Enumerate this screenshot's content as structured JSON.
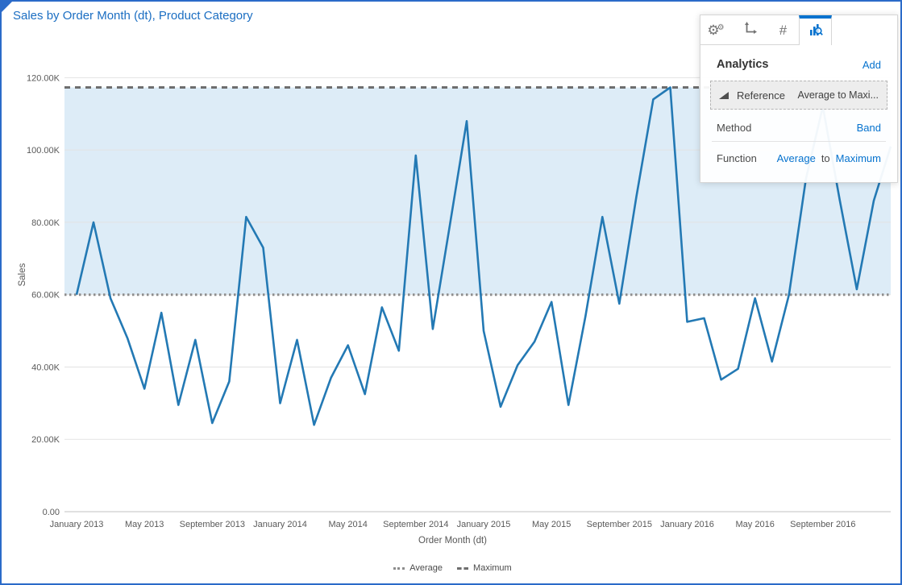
{
  "window": {
    "title": "Sales by Order Month (dt), Product Category"
  },
  "chart_data": {
    "type": "line",
    "title": "Sales by Order Month (dt), Product Category",
    "xlabel": "Order Month (dt)",
    "ylabel": "Sales",
    "ylim": [
      0,
      120000
    ],
    "grid": true,
    "x_tick_labels": [
      "January 2013",
      "May 2013",
      "September 2013",
      "January 2014",
      "May 2014",
      "September 2014",
      "January 2015",
      "May 2015",
      "September 2015",
      "January 2016",
      "May 2016",
      "September 2016"
    ],
    "y_tick_labels": [
      "0.00",
      "20.00K",
      "40.00K",
      "60.00K",
      "80.00K",
      "100.00K",
      "120.00K"
    ],
    "y_tick_values": [
      0,
      20000,
      40000,
      60000,
      80000,
      100000,
      120000
    ],
    "months": [
      "Jan 2013",
      "Feb 2013",
      "Mar 2013",
      "Apr 2013",
      "May 2013",
      "Jun 2013",
      "Jul 2013",
      "Aug 2013",
      "Sep 2013",
      "Oct 2013",
      "Nov 2013",
      "Dec 2013",
      "Jan 2014",
      "Feb 2014",
      "Mar 2014",
      "Apr 2014",
      "May 2014",
      "Jun 2014",
      "Jul 2014",
      "Aug 2014",
      "Sep 2014",
      "Oct 2014",
      "Nov 2014",
      "Dec 2014",
      "Jan 2015",
      "Feb 2015",
      "Mar 2015",
      "Apr 2015",
      "May 2015",
      "Jun 2015",
      "Jul 2015",
      "Aug 2015",
      "Sep 2015",
      "Oct 2015",
      "Nov 2015",
      "Dec 2015",
      "Jan 2016",
      "Feb 2016",
      "Mar 2016",
      "Apr 2016",
      "May 2016",
      "Jun 2016",
      "Jul 2016",
      "Aug 2016",
      "Sep 2016",
      "Oct 2016",
      "Nov 2016",
      "Dec 2016",
      "Jan 2017"
    ],
    "series": [
      {
        "name": "Sales",
        "values": [
          60000,
          80000,
          59000,
          48000,
          34000,
          55000,
          29500,
          47500,
          24500,
          36000,
          81500,
          73000,
          30000,
          47500,
          24000,
          37000,
          46000,
          32500,
          56500,
          44500,
          98500,
          50500,
          79000,
          108000,
          50000,
          29000,
          40500,
          47000,
          58000,
          29500,
          54000,
          81500,
          57500,
          87000,
          114000,
          117300,
          52500,
          53500,
          36500,
          39500,
          59000,
          41500,
          60000,
          92000,
          112000,
          86000,
          61500,
          86000,
          101000
        ]
      }
    ],
    "reference_lines": [
      {
        "name": "Average",
        "value": 60000,
        "style": "dotted"
      },
      {
        "name": "Maximum",
        "value": 117300,
        "style": "dashed"
      }
    ],
    "band": {
      "from": "Average",
      "to": "Maximum"
    },
    "legend_position": "bottom",
    "colors": {
      "line": "#2379b4",
      "band_fill": "#ddecf7",
      "average_line": "#8d8d8d",
      "maximum_line": "#6e6e6e",
      "gridline": "#e3e3e3",
      "axis_line": "#c2c2c2",
      "tick_text": "#595959",
      "title_text": "#1b6ec2"
    }
  },
  "legend": {
    "items": [
      {
        "label": "Average",
        "line_style": "dotted"
      },
      {
        "label": "Maximum",
        "line_style": "dashed"
      }
    ]
  },
  "panel": {
    "tabs": [
      {
        "icon": "gears-icon"
      },
      {
        "icon": "axes-icon"
      },
      {
        "icon": "number-format-icon",
        "glyph": "#"
      },
      {
        "icon": "analytics-icon",
        "active": true
      }
    ],
    "heading": "Analytics",
    "add_label": "Add",
    "reference_row": {
      "label": "Reference",
      "value": "Average to Maxi..."
    },
    "method_row": {
      "label": "Method",
      "value": "Band"
    },
    "function_row": {
      "label": "Function",
      "from": "Average",
      "joiner": "to",
      "to": "Maximum"
    }
  }
}
